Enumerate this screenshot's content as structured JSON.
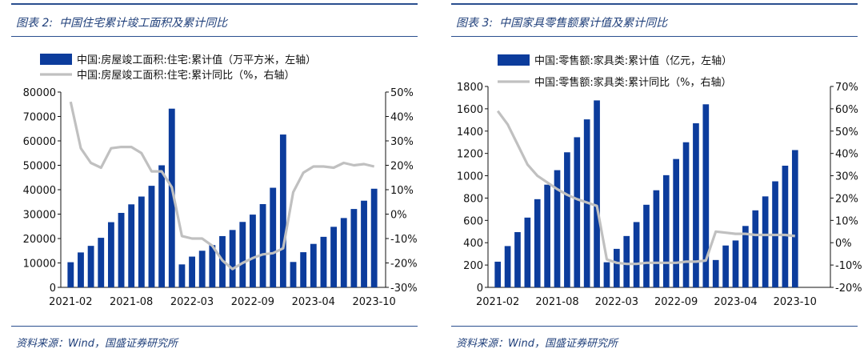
{
  "colors": {
    "bar": "#0c3c9c",
    "line": "#c0c0c0",
    "rule": "#2a4f8f",
    "text": "#1f3f7a"
  },
  "charts": [
    {
      "figure_label": "图表 2:",
      "title": "中国住宅累计竣工面积及累计同比",
      "source": "资料来源：Wind，国盛证券研究所"
    },
    {
      "figure_label": "图表 3:",
      "title": "中国家具零售额累计值及累计同比",
      "source": "资料来源：Wind，国盛证券研究所"
    }
  ],
  "chart_data": [
    {
      "type": "bar",
      "title": "中国住宅累计竣工面积及累计同比",
      "x_tick_labels": [
        "2021-02",
        "2021-08",
        "2022-03",
        "2022-09",
        "2023-04",
        "2023-10"
      ],
      "x_tick_index": [
        0,
        6,
        12,
        18,
        24,
        30
      ],
      "series": [
        {
          "name": "中国:房屋竣工面积:住宅:累计值（万平方米，左轴）",
          "kind": "bar",
          "axis": "left",
          "values": [
            10300,
            14300,
            17000,
            20300,
            26700,
            30500,
            34000,
            37200,
            41600,
            50000,
            73200,
            9400,
            12600,
            15000,
            17300,
            21000,
            23500,
            26800,
            29800,
            34100,
            40800,
            62600,
            10400,
            14400,
            17800,
            20700,
            24800,
            28400,
            32100,
            35500,
            40400
          ]
        },
        {
          "name": "中国:房屋竣工面积:住宅:累计同比（%，右轴）",
          "kind": "line",
          "axis": "right",
          "values": [
            46,
            27,
            21,
            19,
            27,
            27.5,
            27.5,
            25,
            17.5,
            17.5,
            11,
            -9,
            -10,
            -10,
            -13,
            -19,
            -22.5,
            -20,
            -18,
            -16.5,
            -16,
            -14,
            9,
            17,
            19.5,
            19.5,
            19,
            21,
            20,
            20.5,
            19.5
          ]
        }
      ],
      "left_axis": {
        "ylim": [
          0,
          80000
        ],
        "ticks": [
          0,
          10000,
          20000,
          30000,
          40000,
          50000,
          60000,
          70000,
          80000
        ]
      },
      "right_axis": {
        "ylim": [
          -30,
          50
        ],
        "ticks": [
          -30,
          -20,
          -10,
          0,
          10,
          20,
          30,
          40,
          50
        ],
        "format": "%"
      },
      "legend": "top-left"
    },
    {
      "type": "bar",
      "title": "中国家具零售额累计值及累计同比",
      "x_tick_labels": [
        "2021-02",
        "2021-08",
        "2022-03",
        "2022-09",
        "2023-04",
        "2023-10"
      ],
      "x_tick_index": [
        0,
        6,
        12,
        18,
        24,
        30
      ],
      "series": [
        {
          "name": "中国:零售额:家具类:累计值（亿元，左轴）",
          "kind": "bar",
          "axis": "left",
          "values": [
            230,
            370,
            495,
            625,
            790,
            920,
            1050,
            1210,
            1345,
            1505,
            1675,
            225,
            345,
            460,
            585,
            740,
            870,
            1005,
            1150,
            1300,
            1470,
            1640,
            245,
            375,
            420,
            550,
            690,
            815,
            950,
            1090,
            1230
          ]
        },
        {
          "name": "中国:零售额:家具类:累计同比（%，右轴）",
          "kind": "line",
          "axis": "right",
          "values": [
            59,
            53,
            44,
            35,
            30,
            27,
            24,
            21.5,
            19.5,
            18,
            16.5,
            -7.5,
            -9,
            -9.5,
            -9.5,
            -9,
            -9,
            -9,
            -9,
            -8.5,
            -8.5,
            -8,
            5,
            4.5,
            4,
            4,
            3.5,
            3.5,
            3.5,
            3.5,
            3
          ]
        }
      ],
      "left_axis": {
        "ylim": [
          0,
          1800
        ],
        "ticks": [
          0,
          200,
          400,
          600,
          800,
          1000,
          1200,
          1400,
          1600,
          1800
        ]
      },
      "right_axis": {
        "ylim": [
          -20,
          70
        ],
        "ticks": [
          -20,
          -10,
          0,
          10,
          20,
          30,
          40,
          50,
          60,
          70
        ],
        "format": "%"
      },
      "legend": "top-left"
    }
  ]
}
